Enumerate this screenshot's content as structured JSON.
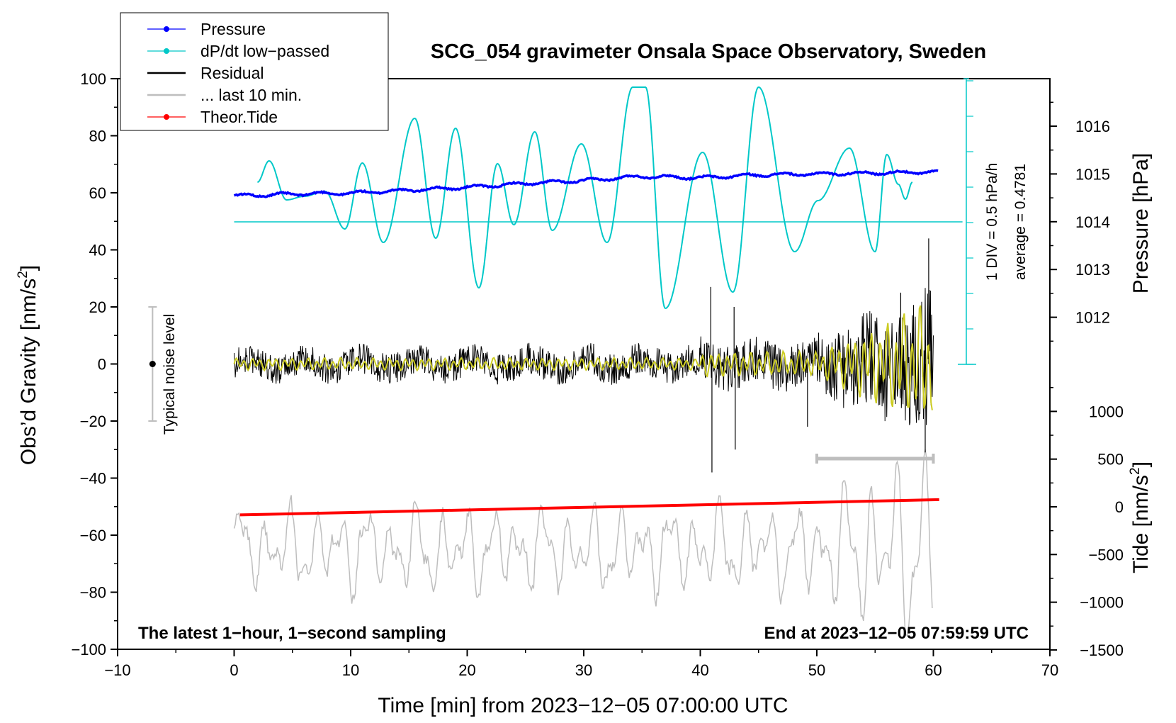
{
  "chart_data": {
    "type": "line",
    "title": "SCG_054 gravimeter Onsala Space Observatory, Sweden",
    "xlabel": "Time [min] from 2023−12−05 07:00:00 UTC",
    "ylabel": "Obs’d Gravity [nm/s²]",
    "xlim": [
      -10,
      70
    ],
    "ylim": [
      -100,
      100
    ],
    "x_ticks": [
      "−10",
      "0",
      "10",
      "20",
      "30",
      "40",
      "50",
      "60",
      "70"
    ],
    "y_ticks": [
      "−100",
      "−80",
      "−60",
      "−40",
      "−20",
      "0",
      "20",
      "40",
      "60",
      "80",
      "100"
    ],
    "pressure_axis": {
      "label": "Pressure [hPa]",
      "ticks": [
        "1012",
        "1013",
        "1014",
        "1015",
        "1016"
      ]
    },
    "tide_axis": {
      "label": "Tide [nm/s²]",
      "ticks": [
        "−1500",
        "−1000",
        "−500",
        "0",
        "500",
        "1000"
      ]
    },
    "legend": {
      "position": "top-left",
      "entries": [
        {
          "label": "Pressure",
          "color": "#0000ff",
          "style": "line-dot"
        },
        {
          "label": "dP/dt low−passed",
          "color": "#00c8c8",
          "style": "line-dot"
        },
        {
          "label": "Residual",
          "color": "#000000",
          "style": "line"
        },
        {
          "label": "... last 10 min.",
          "color": "#bebebe",
          "style": "line"
        },
        {
          "label": "Theor.Tide",
          "color": "#ff0000",
          "style": "line-dot"
        }
      ]
    },
    "annotations": {
      "bottom_left": "The latest 1−hour, 1−second sampling",
      "bottom_right": "End at 2023−12−05 07:59:59 UTC",
      "noise_label": "Typical noise level",
      "dpdt_scale": "1 DIV = 0.5 hPa/h",
      "dpdt_average": "average = 0.4781"
    },
    "noise_bar": {
      "x": -7,
      "center": 0,
      "half_range": 20
    },
    "last10_bar": {
      "x_start": 50,
      "x_end": 60
    },
    "series": [
      {
        "name": "Pressure",
        "unit": "hPa",
        "x": [
          0,
          5,
          10,
          15,
          20,
          25,
          30,
          35,
          40,
          45,
          50,
          55,
          60
        ],
        "values": [
          1014.54,
          1014.58,
          1014.6,
          1014.66,
          1014.72,
          1014.8,
          1014.86,
          1014.95,
          1014.92,
          1014.98,
          1015.0,
          1015.02,
          1015.04
        ]
      },
      {
        "name": "dP/dt low−passed",
        "unit": "hPa/h",
        "baseline": 0.5,
        "x": [
          2,
          3,
          4.5,
          6,
          7.8,
          9.5,
          11,
          12.8,
          15.5,
          17.3,
          19,
          21,
          22.6,
          24,
          25.8,
          27.3,
          29.8,
          32,
          34.2,
          35.3,
          37,
          40.2,
          42.8,
          45,
          48.1,
          50.1,
          52.8,
          55,
          56,
          57,
          57.6,
          58.2
        ],
        "values": [
          1.06,
          1.36,
          0.81,
          0.86,
          0.93,
          0.4,
          1.33,
          0.21,
          1.96,
          0.27,
          1.82,
          -0.43,
          1.32,
          0.46,
          1.77,
          0.38,
          1.6,
          0.21,
          2.4,
          2.4,
          -0.72,
          1.48,
          -0.49,
          2.4,
          0.08,
          0.8,
          1.54,
          0.08,
          1.45,
          1.03,
          0.82,
          1.06
        ]
      },
      {
        "name": "Residual",
        "unit": "nm/s²",
        "x": [
          0,
          40,
          40.9,
          41,
          43,
          50,
          55,
          58,
          59.2,
          60
        ],
        "envelope": [
          5,
          6,
          27,
          -38,
          -30,
          15,
          25,
          30,
          44,
          -31
        ]
      },
      {
        "name": "... last 10 min.",
        "unit": "nm/s²",
        "baseline": -65,
        "peaks": [
          -42,
          -36,
          -35,
          -57,
          -92
        ]
      },
      {
        "name": "Theor.Tide",
        "unit": "nm/s²",
        "x": [
          0.5,
          60.5
        ],
        "values": [
          -85,
          75
        ]
      }
    ]
  }
}
